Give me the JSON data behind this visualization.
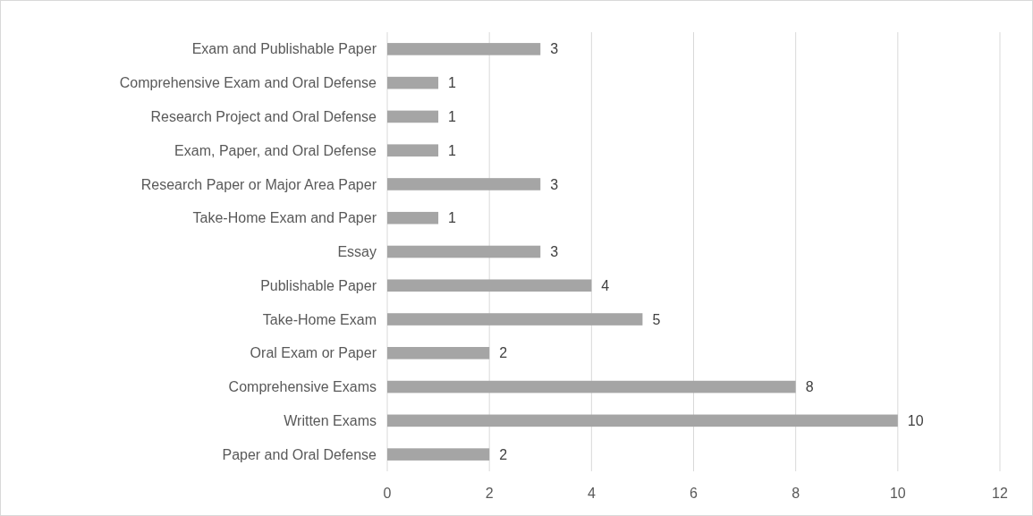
{
  "chart_data": {
    "type": "bar",
    "orientation": "horizontal",
    "categories": [
      "Exam and Publishable Paper",
      "Comprehensive Exam and Oral Defense",
      "Research Project and Oral Defense",
      "Exam, Paper, and Oral Defense",
      "Research Paper or Major Area Paper",
      "Take-Home Exam and Paper",
      "Essay",
      "Publishable Paper",
      "Take-Home Exam",
      "Oral Exam or Paper",
      "Comprehensive Exams",
      "Written Exams",
      "Paper and Oral Defense"
    ],
    "values": [
      3,
      1,
      1,
      1,
      3,
      1,
      3,
      4,
      5,
      2,
      8,
      10,
      2
    ],
    "color": "#a5a5a5",
    "xlim": [
      0,
      12
    ],
    "xticks": [
      0,
      2,
      4,
      6,
      8,
      10,
      12
    ],
    "grid": "x",
    "data_labels": true
  }
}
